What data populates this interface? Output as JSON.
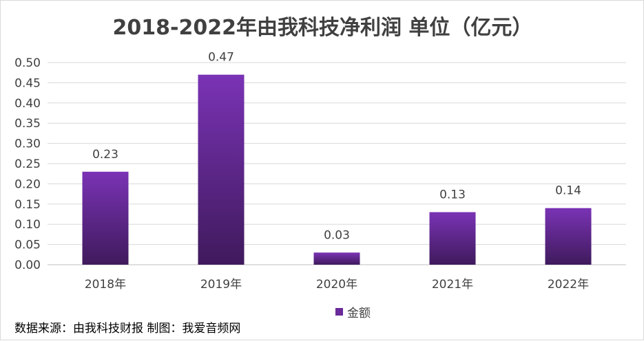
{
  "chart_data": {
    "type": "bar",
    "title": "2018-2022年由我科技净利润 单位（亿元）",
    "categories": [
      "2018年",
      "2019年",
      "2020年",
      "2021年",
      "2022年"
    ],
    "series": [
      {
        "name": "金额",
        "values": [
          0.23,
          0.47,
          0.03,
          0.13,
          0.14
        ],
        "data_labels": [
          "0.23",
          "0.47",
          "0.03",
          "0.13",
          "0.14"
        ]
      }
    ],
    "ylim": [
      0,
      0.5
    ],
    "yticks": [
      "0.00",
      "0.05",
      "0.10",
      "0.15",
      "0.20",
      "0.25",
      "0.30",
      "0.35",
      "0.40",
      "0.45",
      "0.50"
    ],
    "grid": true,
    "legend_position": "bottom",
    "colors": {
      "bar_top": "#7a33b5",
      "bar_bottom": "#3f1a5c",
      "legend": "#6a2a99"
    }
  },
  "footer": {
    "source": "数据来源：由我科技财报  制图：我爱音频网"
  }
}
